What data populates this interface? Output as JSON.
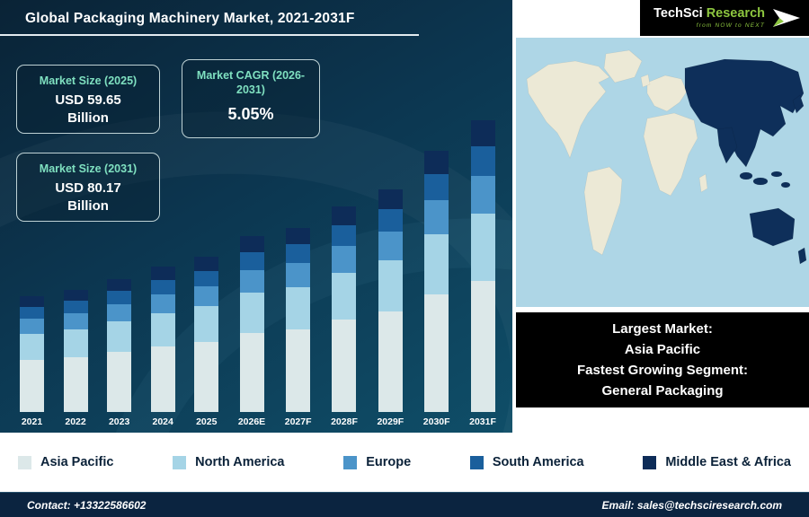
{
  "header": {
    "title": "Global Packaging Machinery Market, 2021-2031F"
  },
  "logo": {
    "part1": "TechSci",
    "part2": "Research",
    "tagline": "from NOW to NEXT"
  },
  "theme": {
    "accent_mint": "#7fe0c0",
    "brand_green": "#8dc63f",
    "panel_navy": "#0b2440"
  },
  "stat_boxes": [
    {
      "label": "Market Size (2025)",
      "value": "USD 59.65",
      "unit": "Billion"
    },
    {
      "label": "Market CAGR (2026-2031)",
      "value": "5.05%"
    },
    {
      "label": "Market Size (2031)",
      "value": "USD 80.17",
      "unit": "Billion"
    }
  ],
  "map_panel": {
    "ocean_color": "#aed6e6",
    "land_color": "#ece9d6",
    "highlight_color": "#0e2f5a",
    "highlighted_region": "Asia Pacific"
  },
  "callout_box": {
    "lines": [
      "Largest Market:",
      "Asia Pacific",
      "Fastest Growing Segment:",
      "General Packaging"
    ]
  },
  "chart_data": {
    "type": "bar",
    "stacked": true,
    "title": "Global Packaging Machinery Market, 2021-2031F",
    "xlabel": "",
    "ylabel": "",
    "y_axis_shown": false,
    "units": "relative height units (chart displays no value axis)",
    "legend_position": "bottom",
    "categories": [
      "2021",
      "2022",
      "2023",
      "2024",
      "2025",
      "2026E",
      "2027F",
      "2028F",
      "2029F",
      "2030F",
      "2031F"
    ],
    "series": [
      {
        "name": "Asia Pacific",
        "color": "#dce8e9",
        "values": [
          58,
          61,
          67,
          73,
          78,
          88,
          92,
          103,
          112,
          131,
          146
        ]
      },
      {
        "name": "North America",
        "color": "#a5d4e6",
        "values": [
          29,
          31,
          34,
          37,
          40,
          45,
          47,
          52,
          57,
          67,
          75
        ]
      },
      {
        "name": "Europe",
        "color": "#4b94c9",
        "values": [
          17,
          18,
          19,
          21,
          22,
          25,
          27,
          30,
          32,
          38,
          42
        ]
      },
      {
        "name": "South America",
        "color": "#1a5f9c",
        "values": [
          13,
          14,
          15,
          16,
          17,
          20,
          21,
          23,
          25,
          29,
          33
        ]
      },
      {
        "name": "Middle East & Africa",
        "color": "#0d2c58",
        "values": [
          12,
          12,
          13,
          15,
          16,
          18,
          18,
          21,
          22,
          26,
          29
        ]
      }
    ]
  },
  "footer": {
    "contact": "Contact: +13322586602",
    "email": "Email: sales@techsciresearch.com"
  }
}
